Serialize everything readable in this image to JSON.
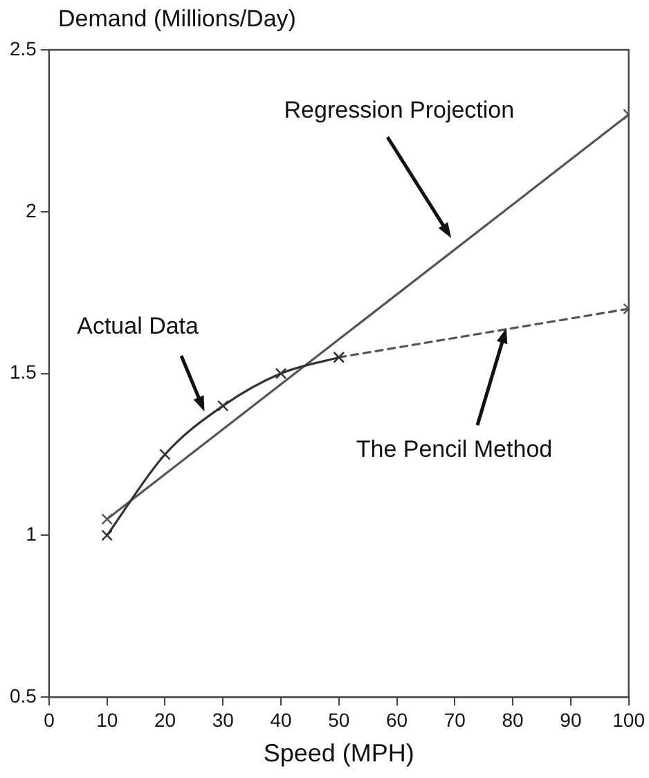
{
  "chart_data": {
    "type": "line",
    "ylabel": "Demand (Millions/Day)",
    "xlabel": "Speed (MPH)",
    "xlim": [
      0,
      100
    ],
    "xticks": [
      0,
      10,
      20,
      30,
      40,
      50,
      60,
      70,
      80,
      90,
      100
    ],
    "ylim": [
      0.5,
      2.5
    ],
    "yticks": [
      0.5,
      1,
      1.5,
      2,
      2.5
    ],
    "grid": false,
    "legend": false,
    "marker": "cross",
    "series": [
      {
        "color": "#333333",
        "x": [
          10,
          20,
          30,
          40,
          50
        ],
        "values": [
          1.0,
          1.25,
          1.4,
          1.5,
          1.55
        ],
        "line_style": "solid"
      },
      {
        "color": "#555555",
        "x": [
          10,
          100
        ],
        "values": [
          1.05,
          2.3
        ],
        "line_style": "solid"
      },
      {
        "color": "#555555",
        "x": [
          50,
          100
        ],
        "values": [
          1.55,
          1.7
        ],
        "line_style": "dashed"
      }
    ],
    "annotations": [
      "Regression Projection",
      "Actual Data",
      "The Pencil Method"
    ]
  }
}
